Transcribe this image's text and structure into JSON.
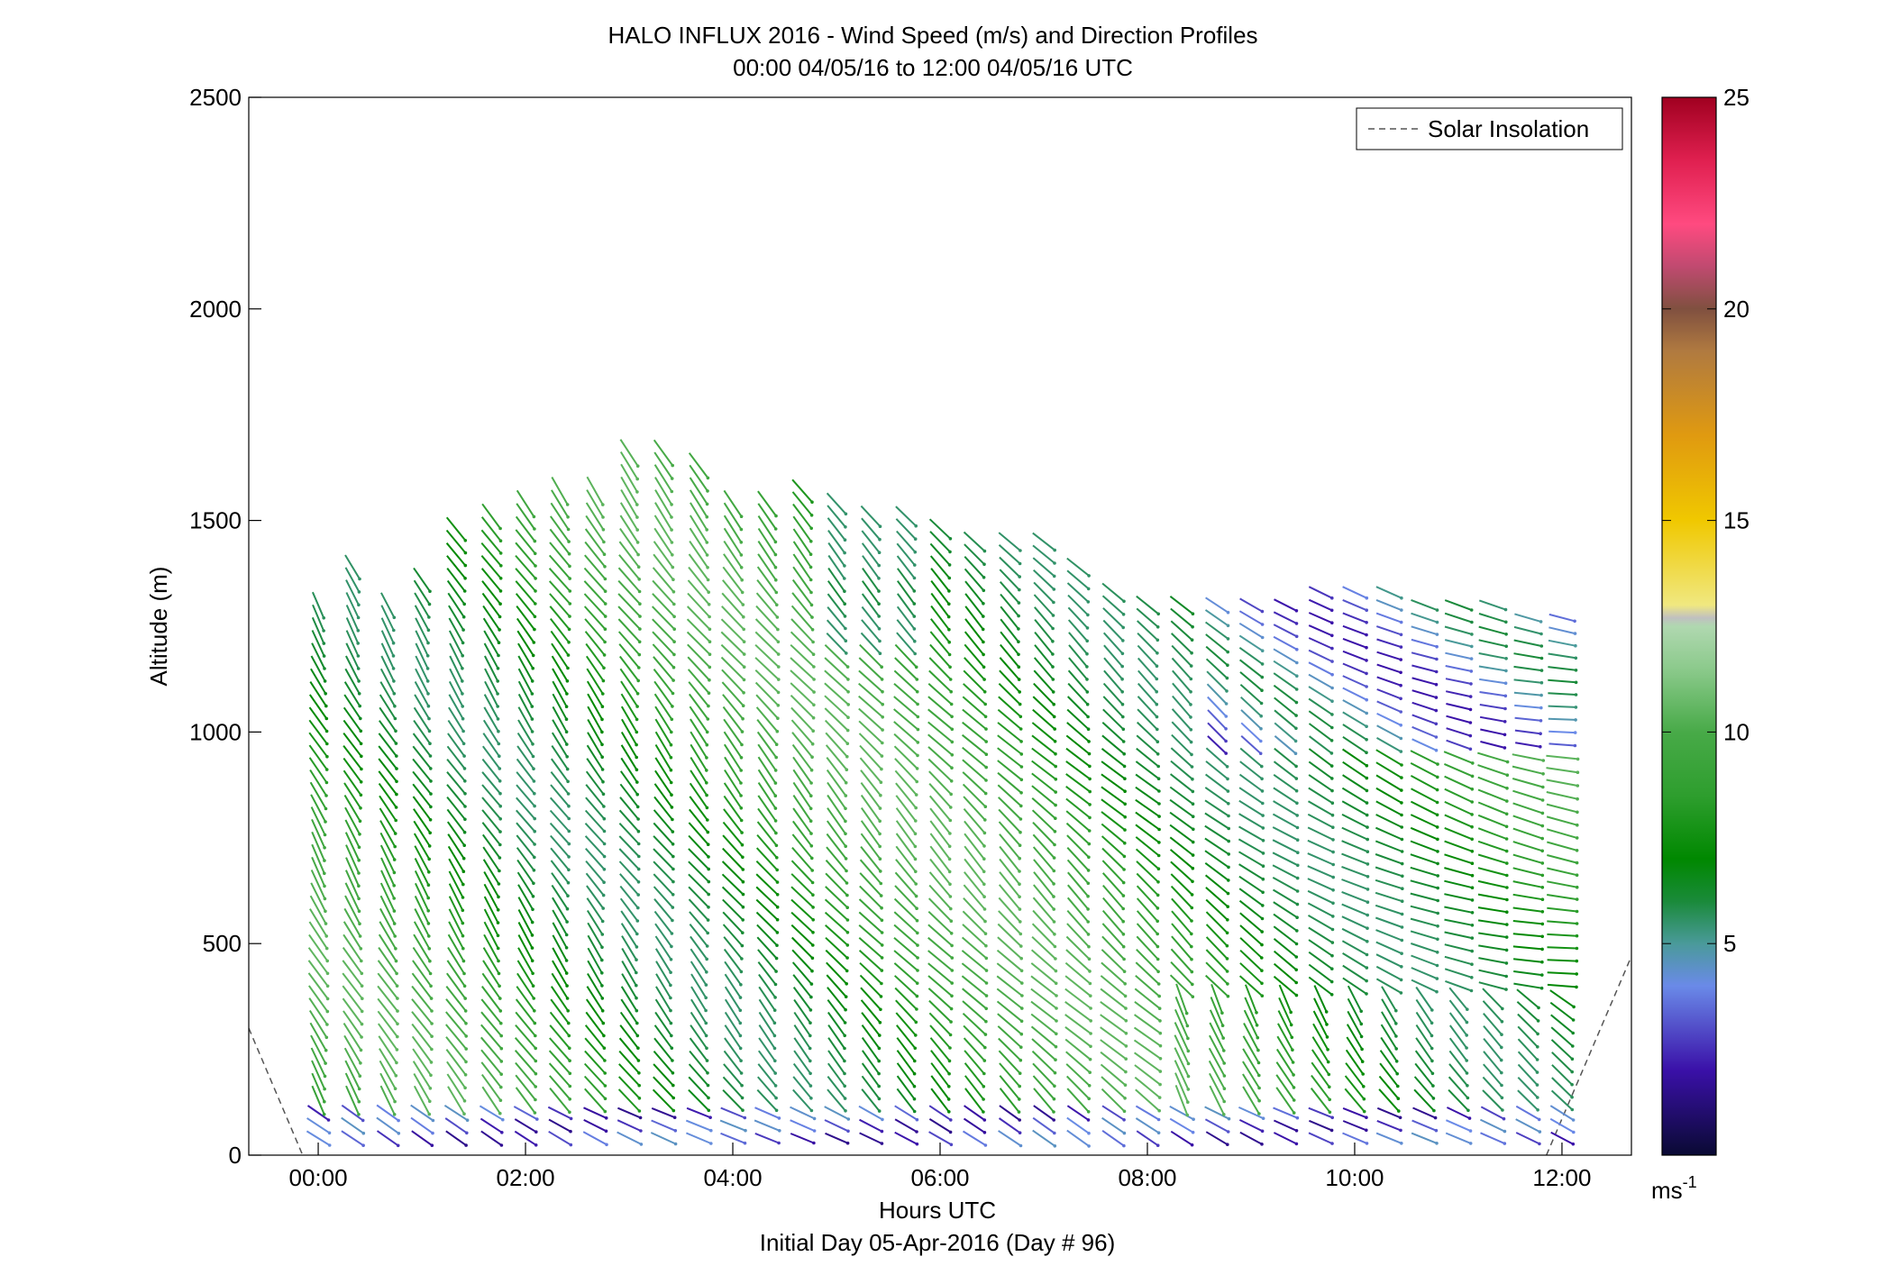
{
  "chart_data": {
    "type": "vector-field",
    "title_line1": "HALO INFLUX 2016 - Wind Speed (m/s) and Direction Profiles",
    "title_line2": "00:00 04/05/16 to 12:00 04/05/16  UTC",
    "xlabel": "Hours UTC",
    "xlabel2": "Initial Day 05-Apr-2016 (Day # 96)",
    "ylabel": "Altitude (m)",
    "xlim_hours": [
      -0.67,
      12.67
    ],
    "ylim": [
      0,
      2500
    ],
    "x_ticks": [
      {
        "value": 0,
        "label": "00:00"
      },
      {
        "value": 2,
        "label": "02:00"
      },
      {
        "value": 4,
        "label": "04:00"
      },
      {
        "value": 6,
        "label": "06:00"
      },
      {
        "value": 8,
        "label": "08:00"
      },
      {
        "value": 10,
        "label": "10:00"
      },
      {
        "value": 12,
        "label": "12:00"
      }
    ],
    "y_ticks": [
      {
        "value": 0,
        "label": "0"
      },
      {
        "value": 500,
        "label": "500"
      },
      {
        "value": 1000,
        "label": "1000"
      },
      {
        "value": 1500,
        "label": "1500"
      },
      {
        "value": 2000,
        "label": "2000"
      },
      {
        "value": 2500,
        "label": "2500"
      }
    ],
    "legend": {
      "label": "Solar Insolation",
      "placement": "top-right",
      "style": "dashed"
    },
    "colorbar": {
      "range": [
        0,
        25
      ],
      "units": "ms",
      "units_exp": "-1",
      "ticks": [
        {
          "value": 5,
          "label": "5"
        },
        {
          "value": 10,
          "label": "10"
        },
        {
          "value": 15,
          "label": "15"
        },
        {
          "value": 20,
          "label": "20"
        },
        {
          "value": 25,
          "label": "25"
        }
      ],
      "stops": [
        {
          "v": 0,
          "color": "#0a0a33"
        },
        {
          "v": 2,
          "color": "#3a10a8"
        },
        {
          "v": 4,
          "color": "#6a8ae8"
        },
        {
          "v": 5,
          "color": "#4a9a9a"
        },
        {
          "v": 6,
          "color": "#1a8a3a"
        },
        {
          "v": 7,
          "color": "#008800"
        },
        {
          "v": 8.5,
          "color": "#2e9e2e"
        },
        {
          "v": 10,
          "color": "#48aa48"
        },
        {
          "v": 11.5,
          "color": "#8cca8c"
        },
        {
          "v": 12.5,
          "color": "#b0d8b0"
        },
        {
          "v": 12.7,
          "color": "#c0c0c0"
        },
        {
          "v": 13,
          "color": "#f0e880"
        },
        {
          "v": 15,
          "color": "#f0c800"
        },
        {
          "v": 17,
          "color": "#e09a10"
        },
        {
          "v": 19,
          "color": "#b07a40"
        },
        {
          "v": 20,
          "color": "#805040"
        },
        {
          "v": 21,
          "color": "#c04a70"
        },
        {
          "v": 22,
          "color": "#ff4a80"
        },
        {
          "v": 23.5,
          "color": "#e02050"
        },
        {
          "v": 25,
          "color": "#a00020"
        }
      ]
    },
    "solar_insolation": [
      {
        "x": -0.67,
        "y": 300
      },
      {
        "x": -0.15,
        "y": 0
      },
      {
        "x": 11.85,
        "y": 0
      },
      {
        "x": 12.67,
        "y": 470
      }
    ],
    "profile_times_hours": [
      0,
      0.33,
      0.67,
      1.0,
      1.33,
      1.67,
      2.0,
      2.33,
      2.67,
      3.0,
      3.33,
      3.67,
      4.0,
      4.33,
      4.67,
      5.0,
      5.33,
      5.67,
      6.0,
      6.33,
      6.67,
      7.0,
      7.33,
      7.67,
      8.0,
      8.33,
      8.67,
      9.0,
      9.33,
      9.67,
      10.0,
      10.33,
      10.67,
      11.0,
      11.33,
      11.67,
      12.0
    ],
    "profile_tops_m": [
      1310,
      1400,
      1320,
      1380,
      1490,
      1530,
      1560,
      1570,
      1570,
      1660,
      1660,
      1640,
      1560,
      1560,
      1570,
      1560,
      1530,
      1510,
      1490,
      1470,
      1460,
      1450,
      1390,
      1330,
      1320,
      1320,
      1320,
      1320,
      1320,
      1330,
      1330,
      1330,
      1320,
      1320,
      1300,
      1280,
      1270
    ],
    "altitude_step_m": 30,
    "altitude_start_m": 40
  }
}
